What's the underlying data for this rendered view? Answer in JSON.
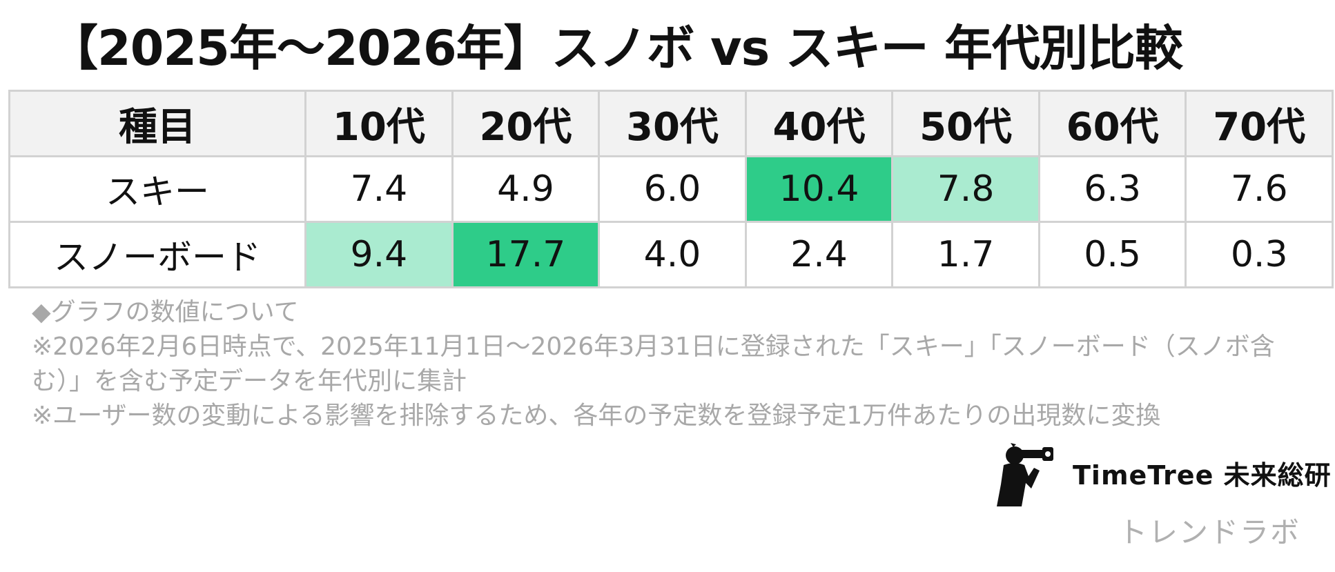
{
  "chart_data": {
    "type": "table",
    "title": "【2025年〜2026年】スノボ vs スキー 年代別比較",
    "columns": [
      "種目",
      "10代",
      "20代",
      "30代",
      "40代",
      "50代",
      "60代",
      "70代"
    ],
    "rows": [
      {
        "label": "スキー",
        "values": [
          "7.4",
          "4.9",
          "6.0",
          "10.4",
          "7.8",
          "6.3",
          "7.6"
        ],
        "highlights": [
          "none",
          "none",
          "none",
          "strong",
          "light",
          "none",
          "none"
        ]
      },
      {
        "label": "スノーボード",
        "values": [
          "9.4",
          "17.7",
          "4.0",
          "2.4",
          "1.7",
          "0.5",
          "0.3"
        ],
        "highlights": [
          "light",
          "strong",
          "none",
          "none",
          "none",
          "none",
          "none"
        ]
      }
    ]
  },
  "colors": {
    "strong": "#2ecc89",
    "light": "#aaebd0",
    "none": "#ffffff"
  },
  "notes": {
    "heading": "◆グラフの数値について",
    "line1": "※2026年2月6日時点で、2025年11月1日〜2026年3月31日に登録された「スキー」「スノーボード（スノボ含む）」を含む予定データを年代別に集計",
    "line2": "※ユーザー数の変動による影響を排除するため、各年の予定数を登録予定1万件あたりの出現数に変換"
  },
  "brand": {
    "name": "TimeTree 未来総研",
    "sublabel": "トレンドラボ",
    "logo_icon": "photographer-silhouette-icon"
  }
}
